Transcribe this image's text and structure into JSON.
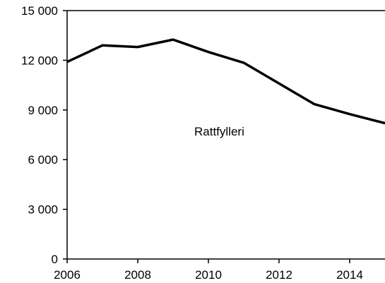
{
  "chart_data": {
    "type": "line",
    "title": "",
    "xlabel": "",
    "ylabel": "",
    "xlim": [
      2006,
      2015
    ],
    "ylim": [
      0,
      15000
    ],
    "x_ticks": [
      2006,
      2008,
      2010,
      2012,
      2014
    ],
    "x_tick_labels": [
      "2006",
      "2008",
      "2010",
      "2012",
      "2014"
    ],
    "y_ticks": [
      0,
      3000,
      6000,
      9000,
      12000,
      15000
    ],
    "y_tick_labels": [
      "0",
      "3 000",
      "6 000",
      "9 000",
      "12 000",
      "15 000"
    ],
    "grid": false,
    "legend": "none",
    "annotation": "Rattfylleri",
    "series": [
      {
        "name": "Rattfylleri",
        "color": "#000000",
        "x": [
          2006,
          2007,
          2008,
          2009,
          2010,
          2011,
          2012,
          2013,
          2014,
          2015
        ],
        "values": [
          11900,
          12900,
          12800,
          13250,
          12500,
          11850,
          10600,
          9350,
          8750,
          8200
        ]
      }
    ]
  }
}
